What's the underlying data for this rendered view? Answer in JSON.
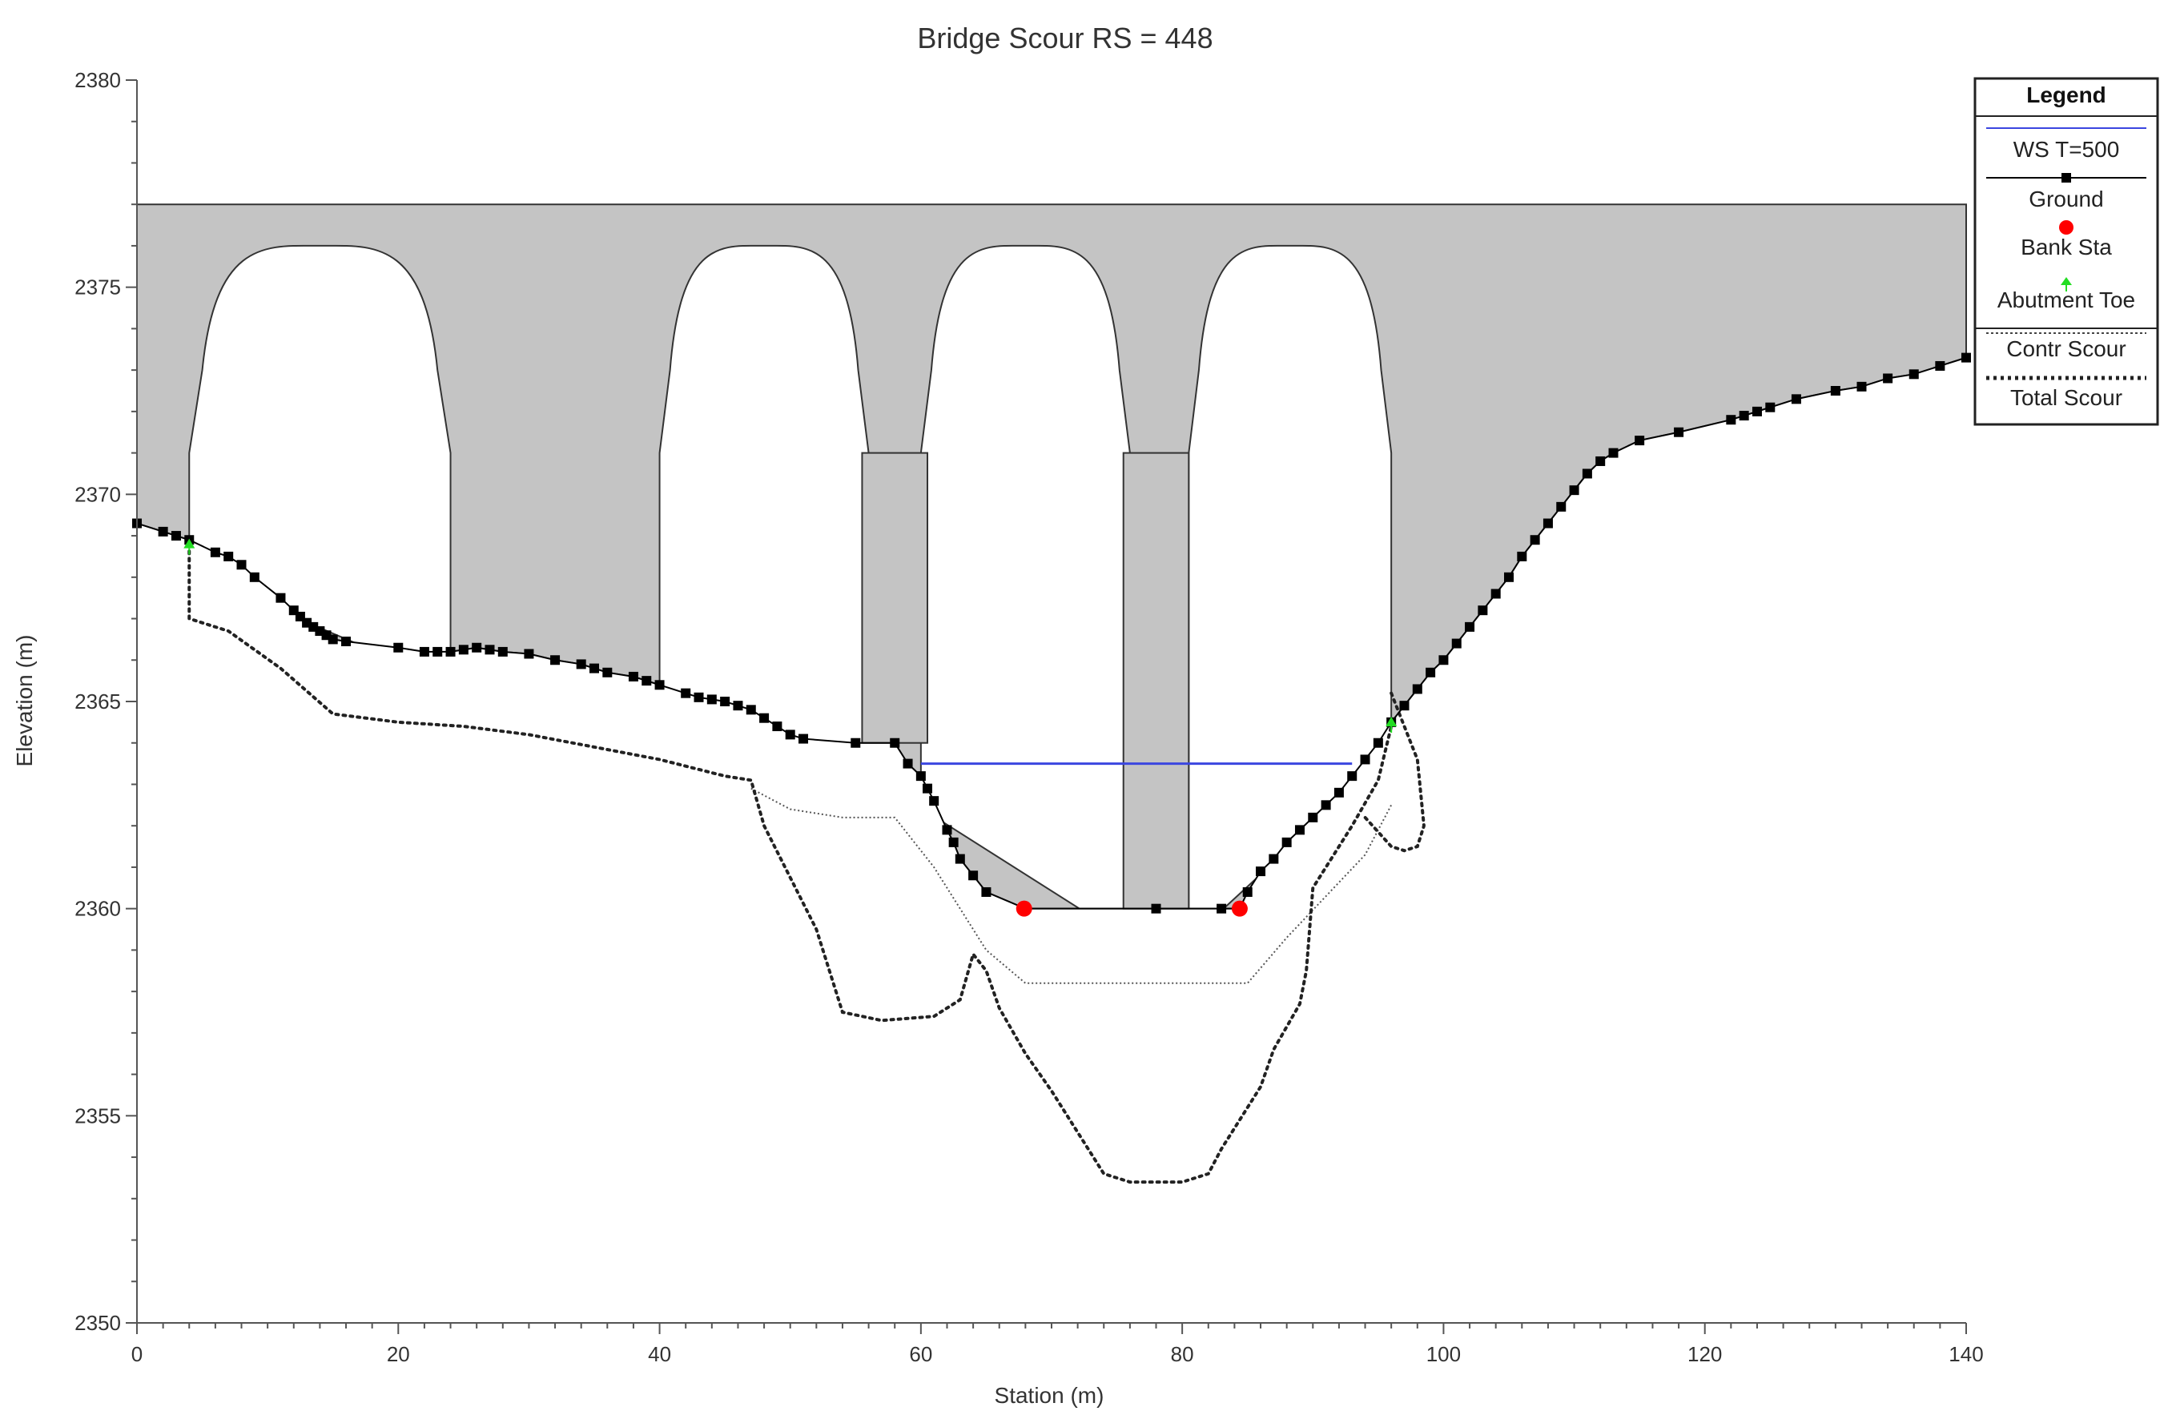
{
  "chart_data": {
    "type": "line",
    "title": "Bridge Scour RS = 448",
    "xlabel": "Station (m)",
    "ylabel": "Elevation (m)",
    "xlim": [
      0,
      140
    ],
    "ylim": [
      2350,
      2380
    ],
    "x_ticks": [
      "0",
      "20",
      "40",
      "60",
      "80",
      "100",
      "120",
      "140"
    ],
    "y_ticks": [
      "2350",
      "2355",
      "2360",
      "2365",
      "2370",
      "2375",
      "2380"
    ],
    "grid": false,
    "legend": {
      "title": "Legend",
      "placement": "top-right outside",
      "entries": [
        "WS T=500",
        "Ground",
        "Bank Sta",
        "Abutment Toe",
        "Contr Scour",
        "Total Scour"
      ]
    },
    "colors": {
      "ws": "#3b46e0",
      "ground": "#000000",
      "bank_sta": "#ff0000",
      "abutment_toe": "#22dd22",
      "bridge_fill": "#c4c4c4",
      "contr_scour": "#555555",
      "total_scour": "#222222"
    },
    "bridge_deck": {
      "top_elevation": 2377,
      "x_start": 0,
      "x_end": 140
    },
    "arches": [
      {
        "x_left": 4,
        "x_right": 24,
        "spring_elevation": 2371,
        "crown_elevation": 2376
      },
      {
        "x_left": 40,
        "x_right": 56,
        "spring_elevation": 2371,
        "crown_elevation": 2376
      },
      {
        "x_left": 60,
        "x_right": 76,
        "spring_elevation": 2371,
        "crown_elevation": 2376
      },
      {
        "x_left": 80.5,
        "x_right": 96,
        "spring_elevation": 2371,
        "crown_elevation": 2376
      }
    ],
    "piers": [
      {
        "x_left": 55.5,
        "x_right": 60.5,
        "bottom_elevation": 2364,
        "top_elevation": 2371
      },
      {
        "x_left": 75.5,
        "x_right": 80.5,
        "bottom_elevation": 2360,
        "top_elevation": 2371
      }
    ],
    "series": [
      {
        "name": "Ground",
        "x": [
          0,
          2,
          3,
          4,
          6,
          7,
          8,
          9,
          11,
          12,
          12.5,
          13,
          13.5,
          14,
          14.5,
          15,
          16,
          20,
          22,
          23,
          24,
          25,
          26,
          27,
          28,
          30,
          32,
          34,
          35,
          36,
          38,
          39,
          40,
          42,
          43,
          44,
          45,
          46,
          47,
          48,
          49,
          50,
          51,
          55,
          58,
          59,
          60,
          60.5,
          61,
          62,
          62.5,
          63,
          64,
          65,
          68,
          78,
          83,
          84.4,
          85,
          86,
          87,
          88,
          89,
          90,
          91,
          92,
          93,
          94,
          95,
          96,
          97,
          98,
          99,
          100,
          101,
          102,
          103,
          104,
          105,
          106,
          107,
          108,
          109,
          110,
          111,
          112,
          113,
          115,
          118,
          122,
          123,
          124,
          125,
          127,
          130,
          132,
          134,
          136,
          138,
          140
        ],
        "y": [
          2369.3,
          2369.1,
          2369.0,
          2368.9,
          2368.6,
          2368.5,
          2368.3,
          2368.0,
          2367.5,
          2367.2,
          2367.05,
          2366.9,
          2366.8,
          2366.7,
          2366.6,
          2366.5,
          2366.45,
          2366.3,
          2366.2,
          2366.2,
          2366.2,
          2366.25,
          2366.3,
          2366.25,
          2366.2,
          2366.15,
          2366.0,
          2365.9,
          2365.8,
          2365.7,
          2365.6,
          2365.5,
          2365.4,
          2365.2,
          2365.1,
          2365.05,
          2365.0,
          2364.9,
          2364.8,
          2364.6,
          2364.4,
          2364.2,
          2364.1,
          2364.0,
          2364.0,
          2363.5,
          2363.2,
          2362.9,
          2362.6,
          2361.9,
          2361.6,
          2361.2,
          2360.8,
          2360.4,
          2360.0,
          2360.0,
          2360.0,
          2360.0,
          2360.4,
          2360.9,
          2361.2,
          2361.6,
          2361.9,
          2362.2,
          2362.5,
          2362.8,
          2363.2,
          2363.6,
          2364.0,
          2364.5,
          2364.9,
          2365.3,
          2365.7,
          2366.0,
          2366.4,
          2366.8,
          2367.2,
          2367.6,
          2368.0,
          2368.5,
          2368.9,
          2369.3,
          2369.7,
          2370.1,
          2370.5,
          2370.8,
          2371.0,
          2371.3,
          2371.5,
          2371.8,
          2371.9,
          2372.0,
          2372.1,
          2372.3,
          2372.5,
          2372.6,
          2372.8,
          2372.9,
          2373.1,
          2373.3
        ]
      },
      {
        "name": "WS T=500",
        "x": [
          60,
          93
        ],
        "y": [
          2363.5,
          2363.5
        ]
      },
      {
        "name": "Bank Sta",
        "x": [
          67.9,
          84.4
        ],
        "y": [
          2360.0,
          2360.0
        ]
      },
      {
        "name": "Abutment Toe",
        "x": [
          4,
          96
        ],
        "y": [
          2368.7,
          2364.4
        ]
      },
      {
        "name": "Contr Scour",
        "x": [
          47,
          50,
          54,
          58,
          61,
          65,
          68,
          78,
          85,
          88,
          91,
          94,
          96
        ],
        "y": [
          2362.9,
          2362.4,
          2362.2,
          2362.2,
          2361.0,
          2359.0,
          2358.2,
          2358.2,
          2358.2,
          2359.3,
          2360.3,
          2361.3,
          2362.5
        ]
      },
      {
        "name": "Total Scour",
        "x": [
          4,
          4,
          7,
          11,
          15,
          20,
          25,
          30,
          35,
          40,
          45,
          47,
          48,
          52,
          54,
          57,
          61,
          63,
          64,
          65,
          66,
          68,
          70,
          74,
          76,
          80,
          82,
          83,
          86,
          87,
          89,
          89.5,
          90,
          93,
          95,
          96
        ],
        "y": [
          2368.8,
          2367.0,
          2366.7,
          2365.8,
          2364.7,
          2364.5,
          2364.4,
          2364.2,
          2363.9,
          2363.6,
          2363.2,
          2363.1,
          2362.0,
          2359.5,
          2357.5,
          2357.3,
          2357.4,
          2357.8,
          2358.9,
          2358.5,
          2357.6,
          2356.5,
          2355.6,
          2353.6,
          2353.4,
          2353.4,
          2353.6,
          2354.2,
          2355.7,
          2356.6,
          2357.7,
          2358.5,
          2360.5,
          2362.0,
          2363.1,
          2364.4
        ]
      },
      {
        "name": "Total Scour",
        "x": [
          96,
          98,
          98.5,
          98,
          97,
          96,
          94
        ],
        "y": [
          2365.2,
          2363.6,
          2362.0,
          2361.5,
          2361.4,
          2361.5,
          2362.2
        ]
      }
    ]
  }
}
